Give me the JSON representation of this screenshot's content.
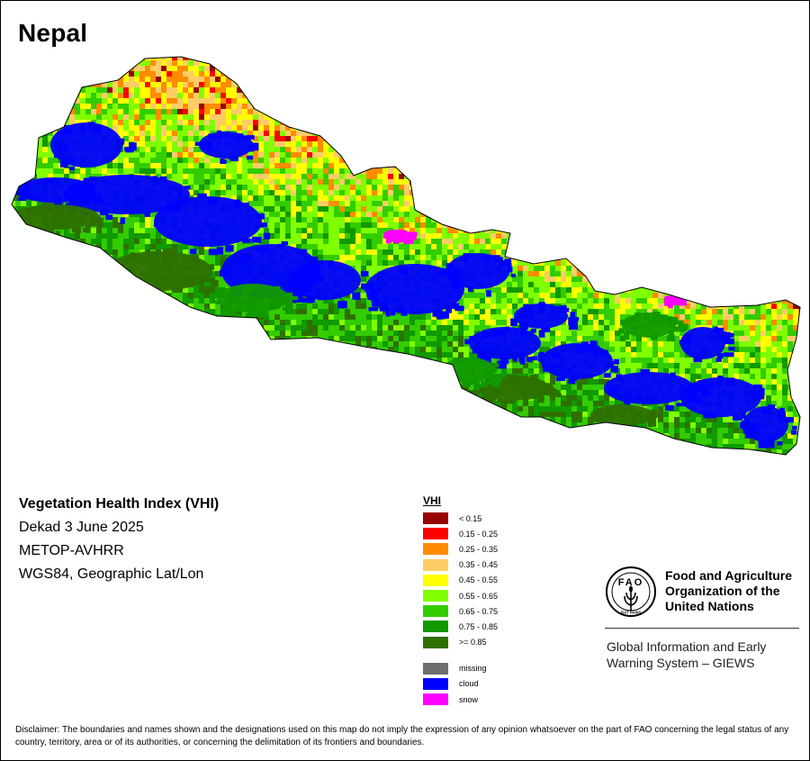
{
  "map": {
    "country": "Nepal"
  },
  "info": {
    "index_name": "Vegetation Health Index (VHI)",
    "period": "Dekad 3 June 2025",
    "sensor": "METOP-AVHRR",
    "projection": "WGS84, Geographic Lat/Lon"
  },
  "legend": {
    "title": "VHI",
    "classes": [
      {
        "label": "< 0.15",
        "color": "#990000"
      },
      {
        "label": "0.15 - 0.25",
        "color": "#ff0000"
      },
      {
        "label": "0.25 - 0.35",
        "color": "#ff8c00"
      },
      {
        "label": "0.35 - 0.45",
        "color": "#ffcc66"
      },
      {
        "label": "0.45 - 0.55",
        "color": "#ffff00"
      },
      {
        "label": "0.55 - 0.65",
        "color": "#80ff00"
      },
      {
        "label": "0.65 - 0.75",
        "color": "#33cc00"
      },
      {
        "label": "0.75 - 0.85",
        "color": "#119900"
      },
      {
        "label": ">= 0.85",
        "color": "#2e7000"
      }
    ],
    "special": [
      {
        "label": "missing",
        "color": "#6e6e6e"
      },
      {
        "label": "cloud",
        "color": "#0000ff"
      },
      {
        "label": "snow",
        "color": "#ff00ff"
      }
    ]
  },
  "branding": {
    "org_name": "Food and Agriculture Organization of the United Nations",
    "emblem_text": "FAO",
    "emblem_motto": "FIAT PANIS",
    "system_name": "Global Information and Early Warning System – GIEWS"
  },
  "disclaimer": "Disclaimer: The boundaries and names shown and the designations used on this map do not imply the expression of any opinion whatsoever on the part of FAO concerning the legal status of any country, territory, area or of its authorities, or concerning the delimitation of its frontiers and boundaries."
}
